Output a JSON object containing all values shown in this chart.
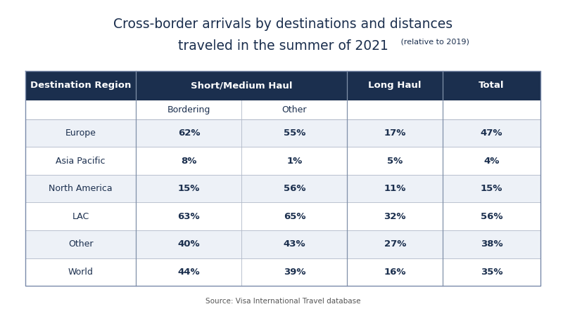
{
  "title_line1": "Cross-border arrivals by destinations and distances",
  "title_line2": "traveled in the summer of 2021",
  "title_suffix": " (relative to 2019)",
  "source": "Source: Visa International Travel database",
  "header_bg_color": "#1b2f4e",
  "header_text_color": "#ffffff",
  "row_bg_even": "#edf1f7",
  "row_bg_odd": "#ffffff",
  "data_text_color": "#1b2f4e",
  "region_text_color": "#1b2f4e",
  "subheader_text_color": "#1b2f4e",
  "rows": [
    [
      "Europe",
      "62%",
      "55%",
      "17%",
      "47%"
    ],
    [
      "Asia Pacific",
      "8%",
      "1%",
      "5%",
      "4%"
    ],
    [
      "North America",
      "15%",
      "56%",
      "11%",
      "15%"
    ],
    [
      "LAC",
      "63%",
      "65%",
      "32%",
      "56%"
    ],
    [
      "Other",
      "40%",
      "43%",
      "27%",
      "38%"
    ],
    [
      "World",
      "44%",
      "39%",
      "16%",
      "35%"
    ]
  ],
  "col_rel": [
    0.0,
    0.215,
    0.42,
    0.625,
    0.81,
    1.0
  ]
}
